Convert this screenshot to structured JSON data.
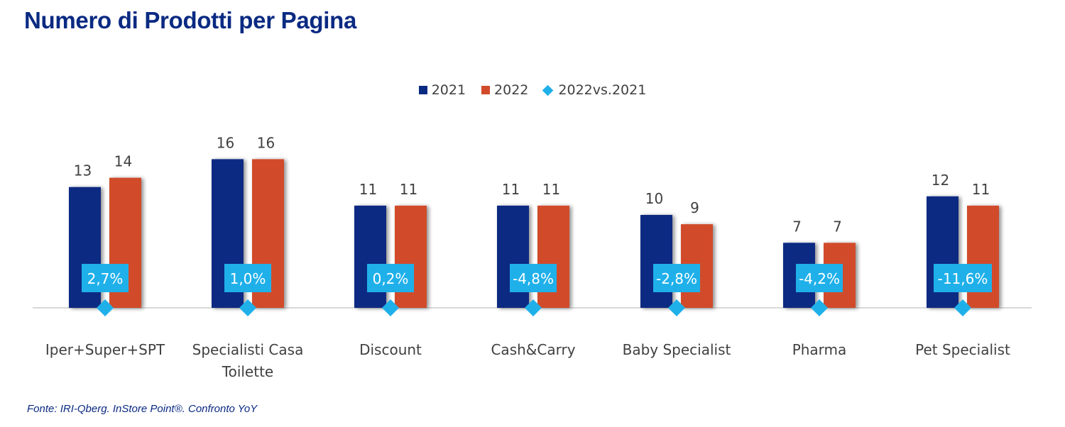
{
  "title": "Numero di Prodotti per Pagina",
  "source": "Fonte: IRI-Qberg. InStore Point®. Confronto YoY",
  "colors": {
    "title": "#0a2a82",
    "series_2021": "#0a2a82",
    "series_2022": "#d14b2a",
    "change": "#1fb0ea",
    "axis": "#d9d9d9",
    "label_text": "#404040"
  },
  "legend": [
    {
      "label": "2021",
      "marker": "square",
      "color": "#0a2a82"
    },
    {
      "label": "2022",
      "marker": "square",
      "color": "#d14b2a"
    },
    {
      "label": "2022vs.2021",
      "marker": "diamond",
      "color": "#1fb0ea"
    }
  ],
  "chart_data": {
    "type": "bar",
    "categories": [
      [
        "Iper+Super+SPT"
      ],
      [
        "Specialisti Casa",
        "Toilette"
      ],
      [
        "Discount"
      ],
      [
        "Cash&Carry"
      ],
      [
        "Baby Specialist"
      ],
      [
        "Pharma"
      ],
      [
        "Pet Specialist"
      ]
    ],
    "series": [
      {
        "name": "2021",
        "values": [
          13,
          16,
          11,
          11,
          10,
          7,
          12
        ],
        "labels": [
          "13",
          "16",
          "11",
          "11",
          "10",
          "7",
          "12"
        ]
      },
      {
        "name": "2022",
        "values": [
          14,
          16,
          11,
          11,
          9,
          7,
          11
        ],
        "labels": [
          "14",
          "16",
          "11",
          "11",
          "9",
          "7",
          "11"
        ]
      }
    ],
    "change_series": {
      "name": "2022vs.2021",
      "values": [
        2.7,
        1.0,
        0.2,
        -4.8,
        -2.8,
        -4.2,
        -11.6
      ],
      "labels": [
        "2,7%",
        "1,0%",
        "0,2%",
        "-4,8%",
        "-2,8%",
        "-4,2%",
        "-11,6%"
      ]
    },
    "ylim": [
      0,
      16
    ],
    "grid": false,
    "legend_position": "top-center"
  }
}
